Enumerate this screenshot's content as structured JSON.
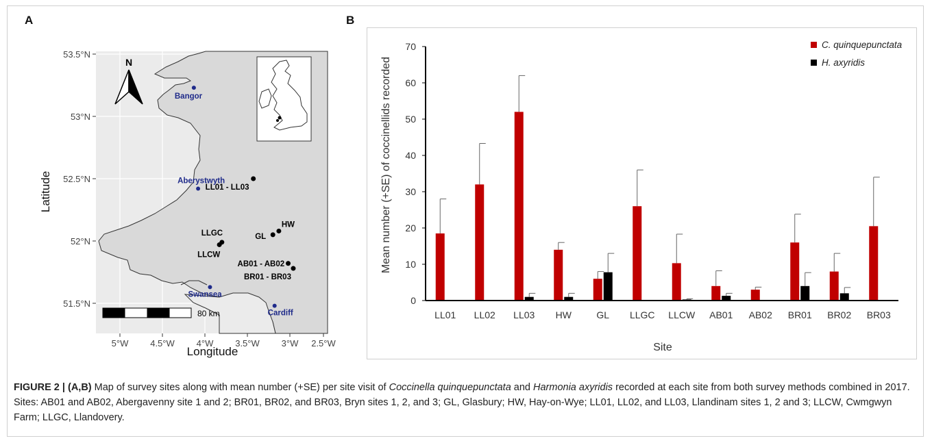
{
  "panels": {
    "a": "A",
    "b": "B"
  },
  "map": {
    "ylabel": "Latitude",
    "xlabel": "Longitude",
    "lat_ticks": [
      "53.5°N",
      "53°N",
      "52.5°N",
      "52°N",
      "51.5°N"
    ],
    "lon_ticks": [
      "5°W",
      "4.5°W",
      "4°W",
      "3.5°W",
      "3°W",
      "2.5°W"
    ],
    "north": "N",
    "scale": "80 km",
    "colors": {
      "land": "#d9d9d9",
      "panel": "#ebebeb",
      "grid": "#ffffff",
      "towns": "#1f2b8a",
      "sites": "#000000"
    },
    "towns": [
      {
        "name": "Bangor",
        "lon": -4.13,
        "lat": 53.23
      },
      {
        "name": "Aberystwyth",
        "lon": -4.08,
        "lat": 52.42
      },
      {
        "name": "Swansea",
        "lon": -3.94,
        "lat": 51.63
      },
      {
        "name": "Cardiff",
        "lon": -3.18,
        "lat": 51.48
      }
    ],
    "sites": [
      {
        "name": "LL01 - LL03",
        "lon": -3.43,
        "lat": 52.5
      },
      {
        "name": "HW",
        "lon": -3.13,
        "lat": 52.08
      },
      {
        "name": "GL",
        "lon": -3.2,
        "lat": 52.05
      },
      {
        "name": "LLGC",
        "lon": -3.8,
        "lat": 51.99
      },
      {
        "name": "LLCW",
        "lon": -3.83,
        "lat": 51.97
      },
      {
        "name": "AB01 - AB02",
        "lon": -3.02,
        "lat": 51.82
      },
      {
        "name": "BR01 - BR03",
        "lon": -2.96,
        "lat": 51.78
      }
    ]
  },
  "chart_data": {
    "type": "bar",
    "ylabel": "Mean number (+SE) of coccinellids recorded",
    "xlabel": "Site",
    "ylim": [
      0,
      70
    ],
    "yticks": [
      0,
      10,
      20,
      30,
      40,
      50,
      60,
      70
    ],
    "categories": [
      "LL01",
      "LL02",
      "LL03",
      "HW",
      "GL",
      "LLGC",
      "LLCW",
      "AB01",
      "AB02",
      "BR01",
      "BR02",
      "BR03"
    ],
    "legend_position": "top-right",
    "series": [
      {
        "name": "C. quinquepunctata",
        "color": "#c00000",
        "values": [
          18.5,
          32,
          52,
          14,
          6,
          26,
          10.3,
          4,
          3,
          16,
          8,
          20.5
        ],
        "se": [
          9.5,
          11.3,
          10,
          2,
          2,
          10,
          8,
          4.2,
          0.7,
          7.8,
          5,
          13.5
        ]
      },
      {
        "name": "H. axyridis",
        "color": "#000000",
        "values": [
          0,
          0,
          1,
          1,
          7.8,
          0,
          0.3,
          1.3,
          0,
          4,
          2,
          0
        ],
        "se": [
          0,
          0,
          1,
          1,
          5.2,
          0,
          0.2,
          0.7,
          0,
          3.7,
          1.6,
          0
        ]
      }
    ]
  },
  "caption": {
    "label": "FIGURE 2 | (A,B)",
    "t1": " Map of survey sites along with mean number (+SE) per site visit of ",
    "sp1": "Coccinella quinquepunctata",
    "t2": " and ",
    "sp2": "Harmonia axyridis",
    "t3": " recorded at each site from both survey methods combined in 2017. Sites: AB01 and AB02, Abergavenny site 1 and 2; BR01, BR02, and BR03, Bryn sites 1, 2, and 3; GL, Glasbury; HW, Hay-on-Wye; LL01, LL02, and LL03, Llandinam sites 1, 2 and 3; LLCW, Cwmgwyn Farm; LLGC, Llandovery."
  }
}
